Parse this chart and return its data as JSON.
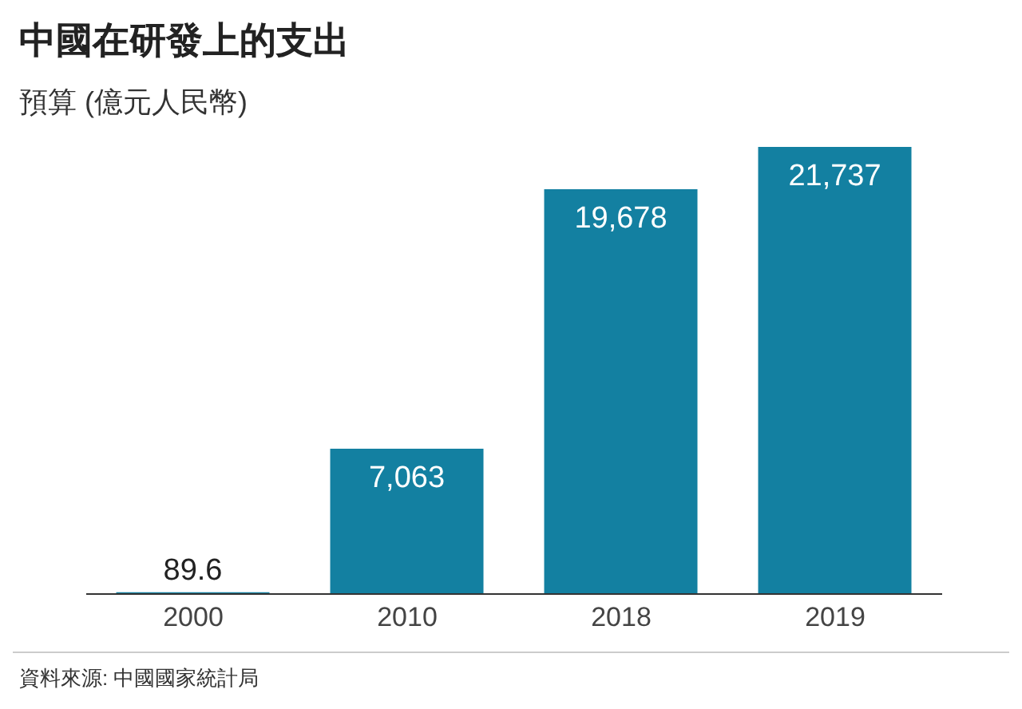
{
  "chart_data": {
    "type": "bar",
    "title": "中國在研發上的支出",
    "subtitle": "預算 (億元人民幣)",
    "categories": [
      "2000",
      "2010",
      "2018",
      "2019"
    ],
    "values": [
      89.6,
      7063,
      19678,
      21737
    ],
    "color": "#1380a1",
    "value_labels": [
      "89.6",
      "7,063",
      "19,678",
      "21,737"
    ],
    "annotations": [
      "資料來源: 中國國家統計局"
    ]
  }
}
